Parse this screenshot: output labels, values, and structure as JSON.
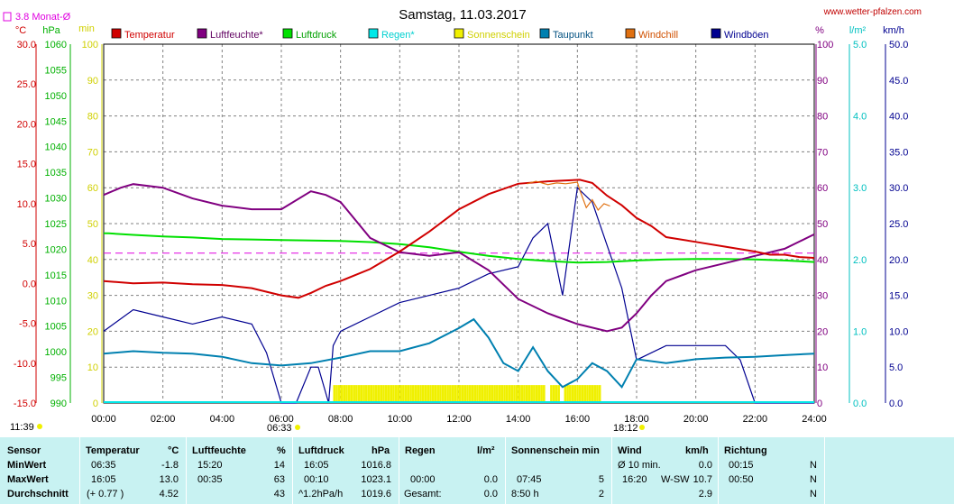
{
  "header": {
    "title": "Samstag, 11.03.2017",
    "site": "www.wetter-pfalzen.com",
    "monthly_avg_label": "3.8 Monat-Ø"
  },
  "axis_units": {
    "temp": "°C",
    "pressure": "hPa",
    "minutes": "min",
    "percent": "%",
    "rain": "l/m²",
    "wind": "km/h"
  },
  "sun": {
    "left_time": "11:39",
    "sunrise": "06:33",
    "sunset": "18:12"
  },
  "colors": {
    "temperature": "#d00000",
    "humidity": "#800080",
    "pressure": "#00e000",
    "rain": "#00e8e8",
    "sunshine": "#f0f000",
    "dewpoint": "#0080b0",
    "windchill": "#e07010",
    "gusts": "#000090",
    "monthly_avg": "#e000e0",
    "table_bg": "#c8f2f2"
  },
  "chart_data": {
    "type": "line",
    "title": "Samstag, 11.03.2017",
    "x_ticks": [
      "00:00",
      "02:00",
      "04:00",
      "06:00",
      "08:00",
      "10:00",
      "12:00",
      "14:00",
      "16:00",
      "18:00",
      "20:00",
      "22:00",
      "24:00"
    ],
    "x_range_hours": [
      0,
      24
    ],
    "grid": true,
    "legend_position": "top",
    "axes": {
      "temp": {
        "unit": "°C",
        "range": [
          -15,
          30
        ],
        "ticks": [
          "30.0",
          "25.0",
          "20.0",
          "15.0",
          "10.0",
          "5.0",
          "0.0",
          "-5.0",
          "-10.0",
          "-15.0"
        ]
      },
      "pressure": {
        "unit": "hPa",
        "range": [
          990,
          1060
        ],
        "ticks": [
          "1060",
          "1055",
          "1050",
          "1045",
          "1040",
          "1035",
          "1030",
          "1025",
          "1020",
          "1015",
          "1010",
          "1005",
          "1000",
          "995",
          "990"
        ]
      },
      "minutes": {
        "unit": "min",
        "range": [
          0,
          100
        ],
        "ticks": [
          "100",
          "90",
          "80",
          "70",
          "60",
          "50",
          "40",
          "30",
          "20",
          "10",
          "0"
        ]
      },
      "percent": {
        "unit": "%",
        "range": [
          0,
          100
        ],
        "ticks": [
          "100",
          "90",
          "80",
          "70",
          "60",
          "50",
          "40",
          "30",
          "20",
          "10",
          "0"
        ]
      },
      "rain": {
        "unit": "l/m²",
        "range": [
          0,
          5
        ],
        "ticks": [
          "5.0",
          "4.0",
          "3.0",
          "2.0",
          "1.0",
          "0.0"
        ]
      },
      "wind": {
        "unit": "km/h",
        "range": [
          0,
          50
        ],
        "ticks": [
          "50.0",
          "45.0",
          "40.0",
          "35.0",
          "30.0",
          "25.0",
          "20.0",
          "15.0",
          "10.0",
          "5.0",
          "0.0"
        ]
      }
    },
    "monthly_avg_temp": 3.8,
    "legend": [
      "Temperatur",
      "Luftfeuchte*",
      "Luftdruck",
      "Regen*",
      "Sonnenschein",
      "Taupunkt",
      "Windchill",
      "Windböen"
    ],
    "series": [
      {
        "name": "Temperatur",
        "axis": "temp",
        "x": [
          0,
          1,
          2,
          3,
          4,
          5,
          6,
          6.58,
          7,
          7.5,
          8,
          9,
          10,
          11,
          12,
          13,
          14,
          15,
          16.08,
          16.5,
          17,
          17.5,
          18,
          18.5,
          19,
          20,
          21,
          22,
          22.5,
          23,
          23.5,
          24
        ],
        "y": [
          0.3,
          0.0,
          0.1,
          -0.1,
          -0.2,
          -0.6,
          -1.5,
          -1.8,
          -1.2,
          -0.3,
          0.3,
          1.8,
          4.0,
          6.5,
          9.3,
          11.2,
          12.5,
          12.8,
          13.0,
          12.6,
          11.0,
          9.8,
          8.2,
          7.2,
          5.8,
          5.2,
          4.6,
          4.0,
          3.6,
          3.6,
          3.3,
          3.2
        ]
      },
      {
        "name": "Luftfeuchte*",
        "axis": "percent",
        "x": [
          0,
          0.58,
          1,
          2,
          3,
          4,
          5,
          6,
          7,
          7.5,
          8,
          9,
          10,
          11,
          12,
          13,
          14,
          15,
          15.33,
          16,
          17,
          17.5,
          18,
          18.5,
          19,
          20,
          21,
          22,
          23,
          23.5,
          24
        ],
        "y": [
          58,
          60,
          61,
          60,
          57,
          55,
          54,
          54,
          59,
          58,
          56,
          46,
          42,
          41,
          42,
          37,
          29,
          25,
          24,
          22,
          20,
          21,
          25,
          30,
          34,
          37,
          39,
          41,
          43,
          45,
          47
        ]
      },
      {
        "name": "Luftdruck",
        "axis": "pressure",
        "x": [
          0,
          0.17,
          1,
          2,
          3,
          4,
          5,
          6,
          7,
          8,
          9,
          10,
          11,
          12,
          13,
          14,
          15,
          16,
          17,
          18,
          19,
          20,
          21,
          22,
          23,
          24
        ],
        "y": [
          1023.1,
          1023.1,
          1022.8,
          1022.5,
          1022.3,
          1022.0,
          1021.9,
          1021.8,
          1021.7,
          1021.6,
          1021.4,
          1021.0,
          1020.4,
          1019.5,
          1018.7,
          1018.1,
          1017.7,
          1017.4,
          1017.5,
          1017.8,
          1018.0,
          1018.1,
          1018.1,
          1018.0,
          1017.8,
          1017.5
        ]
      },
      {
        "name": "Taupunkt",
        "axis": "temp",
        "x": [
          0,
          1,
          2,
          3,
          4,
          5,
          6,
          7,
          8,
          9,
          10,
          11,
          12,
          12.5,
          13,
          13.5,
          14,
          14.5,
          15,
          15.5,
          16,
          16.5,
          17,
          17.5,
          18,
          19,
          20,
          21,
          22,
          23,
          24
        ],
        "y": [
          -8.8,
          -8.5,
          -8.7,
          -8.8,
          -9.2,
          -10.0,
          -10.3,
          -10.0,
          -9.3,
          -8.5,
          -8.5,
          -7.5,
          -5.6,
          -4.5,
          -6.8,
          -10,
          -11,
          -8,
          -11,
          -13,
          -12,
          -10,
          -11,
          -13,
          -9.5,
          -10.0,
          -9.5,
          -9.3,
          -9.2,
          -9.0,
          -8.8
        ]
      },
      {
        "name": "Windchill",
        "axis": "temp",
        "x": [
          14.3,
          14.6,
          15,
          15.3,
          15.6,
          16,
          16.1,
          16.3,
          16.5,
          16.7,
          16.9,
          17.1
        ],
        "y": [
          12.5,
          12.8,
          12.4,
          12.6,
          12.5,
          12.7,
          11.5,
          9.5,
          10.5,
          9.2,
          10.0,
          9.7
        ]
      },
      {
        "name": "Windböen",
        "axis": "wind",
        "x": [
          0,
          1,
          2,
          3,
          4,
          5,
          5.5,
          6,
          6.5,
          7,
          7.25,
          7.6,
          7.75,
          8,
          9,
          10,
          11,
          12,
          13,
          14,
          14.5,
          15,
          15.5,
          16,
          16.5,
          17,
          17.5,
          18,
          19,
          20,
          21,
          21.5,
          22,
          22.5,
          24
        ],
        "y": [
          10,
          13,
          12,
          11,
          12,
          11,
          7,
          0,
          0,
          5,
          5,
          0,
          8,
          10,
          12,
          14,
          15,
          16,
          18,
          19,
          23,
          25,
          15,
          30,
          28,
          22,
          16,
          6,
          8,
          8,
          8,
          6,
          0,
          0,
          0
        ]
      }
    ],
    "sunshine_bars": {
      "axis": "minutes",
      "segments": [
        [
          7.75,
          14.9
        ],
        [
          15.08,
          15.4
        ],
        [
          15.55,
          16.75
        ]
      ],
      "value": 5
    }
  },
  "stats": {
    "headers": {
      "sensor": "Sensor",
      "temp": "Temperatur",
      "temp_unit": "°C",
      "hum": "Luftfeuchte",
      "hum_unit": "%",
      "press": "Luftdruck",
      "press_unit": "hPa",
      "rain": "Regen",
      "rain_unit": "l/m²",
      "sun": "Sonnenschein min",
      "wind": "Wind",
      "wind_unit": "km/h",
      "dir": "Richtung"
    },
    "rows": [
      {
        "label": "MinWert",
        "temp_time": "06:35",
        "temp_val": "-1.8",
        "hum_time": "15:20",
        "hum_val": "14",
        "press_time": "16:05",
        "press_val": "1016.8",
        "rain_time": "",
        "rain_val": "",
        "sun_time": "",
        "sun_val": "",
        "wind_time": "Ø 10 min.",
        "wind_dir": "",
        "wind_val": "0.0",
        "dir_time": "00:15",
        "dir_val": "N"
      },
      {
        "label": "MaxWert",
        "temp_time": "16:05",
        "temp_val": "13.0",
        "hum_time": "00:35",
        "hum_val": "63",
        "press_time": "00:10",
        "press_val": "1023.1",
        "rain_time": "00:00",
        "rain_val": "0.0",
        "sun_time": "07:45",
        "sun_val": "5",
        "wind_time": "16:20",
        "wind_dir": "W-SW",
        "wind_val": "10.7",
        "dir_time": "00:50",
        "dir_val": "N"
      },
      {
        "label": "Durchschnitt",
        "temp_time": "(+ 0.77 )",
        "temp_val": "4.52",
        "hum_time": "",
        "hum_val": "43",
        "press_time": "^1.2hPa/h",
        "press_val": "1019.6",
        "rain_time": "Gesamt:",
        "rain_val": "0.0",
        "sun_time": "8:50 h",
        "sun_val": "2",
        "wind_time": "",
        "wind_dir": "",
        "wind_val": "2.9",
        "dir_time": "",
        "dir_val": "N"
      }
    ]
  }
}
